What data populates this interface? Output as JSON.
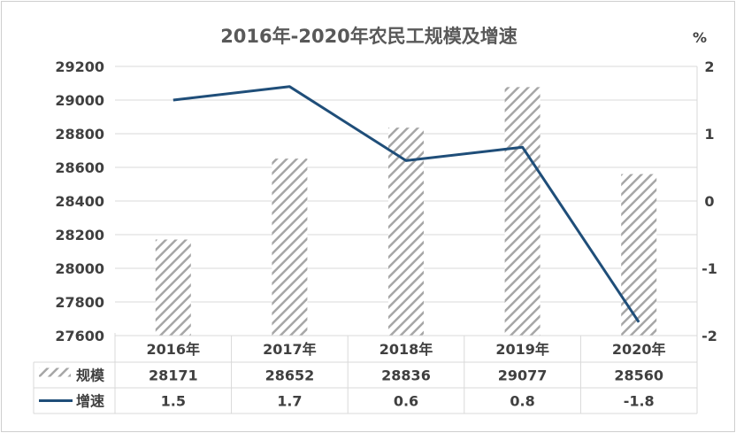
{
  "chart_data": {
    "type": "bar",
    "title": "2016年-2020年农民工规模及增速",
    "categories": [
      "2016年",
      "2017年",
      "2018年",
      "2019年",
      "2020年"
    ],
    "series": [
      {
        "name": "规模",
        "type": "bar",
        "axis": "left",
        "pattern": "diagonal-hatch",
        "color": "#a6a6a6",
        "values": [
          28171,
          28652,
          28836,
          29077,
          28560
        ]
      },
      {
        "name": "增速",
        "type": "line",
        "axis": "right",
        "color": "#1f4e79",
        "values": [
          1.5,
          1.7,
          0.6,
          0.8,
          -1.8
        ]
      }
    ],
    "left_axis": {
      "min": 27600,
      "max": 29200,
      "step": 200
    },
    "right_axis": {
      "min": -2,
      "max": 2,
      "step": 1,
      "unit_label": "%"
    },
    "data_table": {
      "row_labels": [
        "规模",
        "增速"
      ]
    },
    "grid": true,
    "legend": "in data table"
  }
}
